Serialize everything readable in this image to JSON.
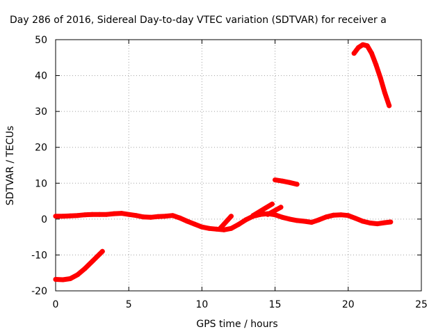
{
  "chart_data": {
    "type": "scatter",
    "title": "Day 286 of 2016, Sidereal Day-to-day VTEC variation (SDTVAR) for receiver a",
    "xlabel": "GPS time / hours",
    "ylabel": "SDTVAR / TECUs",
    "xlim": [
      0,
      25
    ],
    "ylim": [
      -20,
      50
    ],
    "x_ticks": [
      0,
      5,
      10,
      15,
      20,
      25
    ],
    "y_ticks": [
      -20,
      -10,
      0,
      10,
      20,
      30,
      40,
      50
    ],
    "x_tick_labels": [
      "0",
      "5",
      "10",
      "15",
      "20",
      "25"
    ],
    "y_tick_labels": [
      "-20",
      "-10",
      "0",
      "10",
      "20",
      "30",
      "40",
      "50"
    ],
    "grid": true,
    "color": "#ff0000",
    "series": [
      {
        "x": [
          0,
          0.5,
          1.0,
          1.5,
          2.0,
          2.5,
          3.0,
          3.2
        ],
        "y": [
          -16.8,
          -16.9,
          -16.6,
          -15.5,
          -13.8,
          -11.8,
          -9.8,
          -9.0
        ]
      },
      {
        "x": [
          0,
          0.5,
          1,
          1.5,
          2,
          2.5,
          3,
          3.5,
          4,
          4.5,
          5,
          5.5,
          6,
          6.5,
          7,
          7.5,
          8,
          8.5,
          9,
          9.5,
          10,
          10.5,
          11,
          11.5,
          12,
          12.5,
          13,
          13.5,
          14,
          14.5,
          15,
          15.5,
          16,
          16.5,
          17,
          17.5,
          18,
          18.5,
          19,
          19.5,
          20,
          20.5,
          21,
          21.5,
          22,
          22.5,
          22.9
        ],
        "y": [
          0.8,
          0.8,
          0.9,
          1.0,
          1.2,
          1.3,
          1.3,
          1.3,
          1.5,
          1.6,
          1.3,
          1.0,
          0.6,
          0.5,
          0.7,
          0.8,
          1.0,
          0.3,
          -0.6,
          -1.4,
          -2.2,
          -2.6,
          -2.8,
          -3.0,
          -2.6,
          -1.5,
          -0.2,
          0.8,
          1.3,
          1.5,
          1.2,
          0.5,
          0.0,
          -0.4,
          -0.6,
          -0.9,
          -0.2,
          0.6,
          1.1,
          1.2,
          1.0,
          0.2,
          -0.6,
          -1.1,
          -1.3,
          -1.0,
          -0.8
        ]
      },
      {
        "x": [
          11.2,
          12.0
        ],
        "y": [
          -2.8,
          0.8
        ]
      },
      {
        "x": [
          13.5,
          14.8
        ],
        "y": [
          1.0,
          4.2
        ]
      },
      {
        "x": [
          14.5,
          15.4
        ],
        "y": [
          1.3,
          3.3
        ]
      },
      {
        "x": [
          15.0,
          15.5,
          16.0,
          16.5
        ],
        "y": [
          10.9,
          10.6,
          10.2,
          9.7
        ]
      },
      {
        "x": [
          20.4,
          20.7,
          21.0,
          21.3,
          21.6,
          21.9,
          22.2,
          22.5,
          22.8
        ],
        "y": [
          46.2,
          47.8,
          48.6,
          48.3,
          46.2,
          43.0,
          39.4,
          35.2,
          31.6
        ]
      }
    ]
  }
}
